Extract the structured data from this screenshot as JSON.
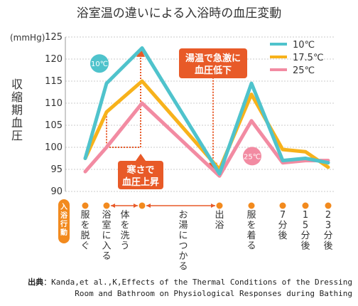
{
  "chart_data": {
    "type": "line",
    "title": "浴室温の違いによる入浴時の血圧変動",
    "ylabel": "収縮期血圧",
    "yunit": "(mmHg)",
    "ylim": [
      90,
      125
    ],
    "yticks": [
      90,
      95,
      100,
      105,
      110,
      115,
      120,
      125
    ],
    "grid": true,
    "legend_position": "top-right",
    "series": [
      {
        "name": "10℃",
        "color": "#4fc3cc",
        "values": [
          97.5,
          114.5,
          122.5,
          94,
          114.5,
          97,
          97.5,
          96.5
        ]
      },
      {
        "name": "17.5℃",
        "color": "#f7b21b",
        "values": [
          97.5,
          108,
          115,
          95,
          112,
          99.5,
          99,
          95.5
        ]
      },
      {
        "name": "25℃",
        "color": "#f28ba2",
        "values": [
          94.5,
          100,
          110,
          93.5,
          106,
          96.5,
          97,
          97
        ]
      }
    ],
    "event_row_label": "入浴行動",
    "events": [
      "服を脱ぐ",
      "浴室に入る",
      "体を洗う",
      "お湯につかる",
      "出浴",
      "服を着る",
      "7分後",
      "15分後",
      "23分後"
    ],
    "annotations": {
      "label_10c": "10℃",
      "label_25c": "25℃",
      "rise": "寒さで血圧上昇",
      "drop": "湯温で急激に血圧低下"
    }
  },
  "source": {
    "label": "出典",
    "line1": "Kanda,et al.,K,Effects of the Thermal Conditions of the Dressing",
    "line2": "Room and Bathroom on Physiological Responses during Bathing"
  }
}
